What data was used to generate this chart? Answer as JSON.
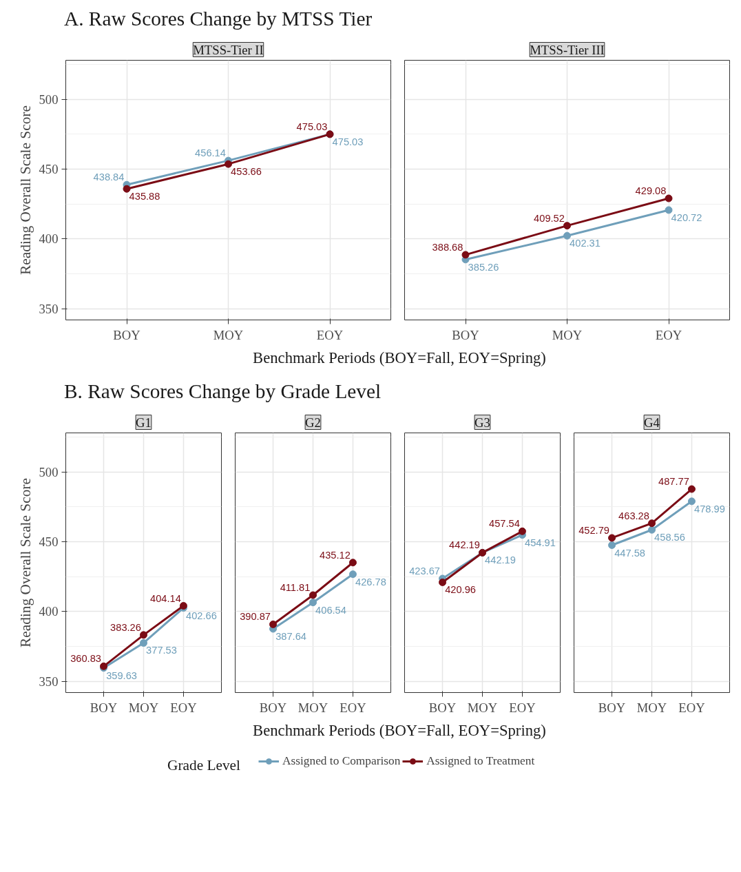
{
  "chart_data": [
    {
      "type": "line",
      "title": "A. Raw Scores Change by MTSS Tier",
      "subtitle": "MTSS-Tier II",
      "xlabel": "Benchmark Periods (BOY=Fall, EOY=Spring)",
      "ylabel": "Reading Overall Scale Score",
      "categories": [
        "BOY",
        "MOY",
        "EOY"
      ],
      "ylim": [
        342,
        528
      ],
      "yticks": [
        350,
        400,
        450,
        500
      ],
      "grid": true,
      "marker": "circle",
      "data_labels": true,
      "series": [
        {
          "color": "#6f9fba",
          "values": [
            438.84,
            456.14,
            475.03
          ]
        },
        {
          "color": "#7b0c15",
          "values": [
            435.88,
            453.66,
            475.03
          ]
        }
      ]
    },
    {
      "type": "line",
      "subtitle": "MTSS-Tier III",
      "categories": [
        "BOY",
        "MOY",
        "EOY"
      ],
      "ylim": [
        342,
        528
      ],
      "yticks": [
        350,
        400,
        450,
        500
      ],
      "tick_labels": "x",
      "grid": true,
      "marker": "circle",
      "data_labels": true,
      "series": [
        {
          "color": "#6f9fba",
          "values": [
            385.26,
            402.31,
            420.72
          ]
        },
        {
          "color": "#7b0c15",
          "values": [
            388.68,
            409.52,
            429.08
          ]
        }
      ]
    },
    {
      "type": "line",
      "title": "B. Raw Scores Change by Grade Level",
      "subtitle": "G1",
      "xlabel": "Benchmark Periods (BOY=Fall, EOY=Spring)",
      "ylabel": "Reading Overall Scale Score",
      "categories": [
        "BOY",
        "MOY",
        "EOY"
      ],
      "ylim": [
        342,
        528
      ],
      "yticks": [
        350,
        400,
        450,
        500
      ],
      "grid": true,
      "marker": "circle",
      "data_labels": true,
      "series": [
        {
          "color": "#6f9fba",
          "values": [
            359.63,
            377.53,
            402.66
          ]
        },
        {
          "color": "#7b0c15",
          "values": [
            360.83,
            383.26,
            404.14
          ]
        }
      ]
    },
    {
      "type": "line",
      "subtitle": "G2",
      "categories": [
        "BOY",
        "MOY",
        "EOY"
      ],
      "ylim": [
        342,
        528
      ],
      "yticks": [
        350,
        400,
        450,
        500
      ],
      "tick_labels": "x",
      "grid": true,
      "marker": "circle",
      "data_labels": true,
      "series": [
        {
          "color": "#6f9fba",
          "values": [
            387.64,
            406.54,
            426.78
          ]
        },
        {
          "color": "#7b0c15",
          "values": [
            390.87,
            411.81,
            435.12
          ]
        }
      ]
    },
    {
      "type": "line",
      "subtitle": "G3",
      "categories": [
        "BOY",
        "MOY",
        "EOY"
      ],
      "ylim": [
        342,
        528
      ],
      "yticks": [
        350,
        400,
        450,
        500
      ],
      "tick_labels": "x",
      "grid": true,
      "marker": "circle",
      "data_labels": true,
      "series": [
        {
          "color": "#6f9fba",
          "values": [
            423.67,
            442.19,
            454.91
          ]
        },
        {
          "color": "#7b0c15",
          "values": [
            420.96,
            442.19,
            457.54
          ]
        }
      ]
    },
    {
      "type": "line",
      "subtitle": "G4",
      "categories": [
        "BOY",
        "MOY",
        "EOY"
      ],
      "ylim": [
        342,
        528
      ],
      "yticks": [
        350,
        400,
        450,
        500
      ],
      "tick_labels": "x",
      "grid": true,
      "marker": "circle",
      "data_labels": true,
      "legend": "bottom",
      "legend_title": "Grade Level",
      "series": [
        {
          "name": "Assigned to Comparison",
          "color": "#6f9fba",
          "values": [
            447.58,
            458.56,
            478.99
          ]
        },
        {
          "name": "Assigned to Treatment",
          "color": "#7b0c15",
          "values": [
            452.79,
            463.28,
            487.77
          ]
        }
      ]
    }
  ]
}
